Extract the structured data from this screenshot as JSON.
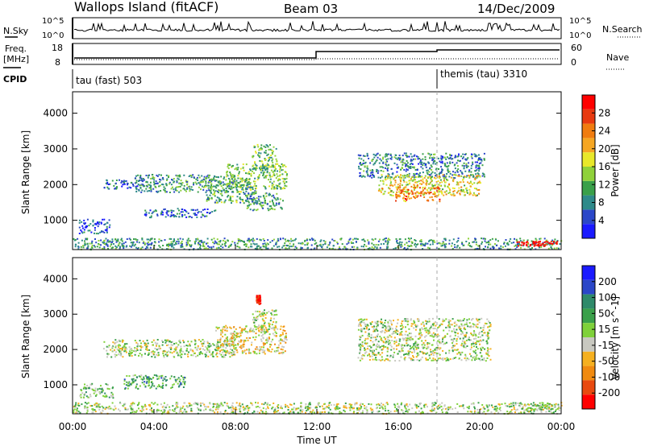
{
  "header": {
    "station": "Wallops Island (fitACF)",
    "beam": "Beam 03",
    "date": "14/Dec/2009"
  },
  "strip": {
    "nsky_label": "N.Sky",
    "nsky_ticks": [
      "10^5",
      "10^0"
    ],
    "nsearch_label": "N.Search",
    "nsearch_ticks": [
      "10^5",
      "10^0"
    ],
    "freq_label": "Freq.",
    "freq_unit": "[MHz]",
    "freq_ticks": [
      "18",
      "8"
    ],
    "nave_label": "Nave",
    "nave_ticks": [
      "60",
      "0"
    ],
    "cpid_label": "CPID",
    "cpid_segments": [
      "tau (fast) 503",
      "themis (tau) 3310"
    ]
  },
  "chart_data": [
    {
      "type": "heatmap",
      "title": "",
      "ylabel": "Slant Range [km]",
      "xlabel": "",
      "x_range_hours": [
        0,
        24
      ],
      "ylim": [
        180,
        4600
      ],
      "yticks": [
        "1000",
        "2000",
        "3000",
        "4000"
      ],
      "xticks": [
        "00:00",
        "04:00",
        "08:00",
        "12:00",
        "16:00",
        "20:00",
        "00:00"
      ],
      "colorbar": {
        "label": "Power [dB]",
        "ticks": [
          "4",
          "8",
          "12",
          "16",
          "20",
          "24",
          "28"
        ],
        "colors": [
          "#1a1aff",
          "#2b47c8",
          "#2f8a8a",
          "#3aa04a",
          "#8fd13a",
          "#e8e82a",
          "#f5a623",
          "#f07c10",
          "#e83a10",
          "#ff0000"
        ]
      },
      "regions": [
        {
          "t0": 0.3,
          "t1": 1.8,
          "r0": 650,
          "r1": 1050,
          "v": 0.15
        },
        {
          "t0": 1.5,
          "t1": 3.5,
          "r0": 1900,
          "r1": 2150,
          "v": 0.2
        },
        {
          "t0": 3.0,
          "t1": 8.0,
          "r0": 1800,
          "r1": 2300,
          "v": 0.3
        },
        {
          "t0": 3.5,
          "t1": 7.0,
          "r0": 1100,
          "r1": 1350,
          "v": 0.2
        },
        {
          "t0": 6.5,
          "t1": 9.0,
          "r0": 1500,
          "r1": 2200,
          "v": 0.35
        },
        {
          "t0": 7.5,
          "t1": 10.5,
          "r0": 1900,
          "r1": 2600,
          "v": 0.4
        },
        {
          "t0": 8.8,
          "t1": 10.0,
          "r0": 2400,
          "r1": 3150,
          "v": 0.4
        },
        {
          "t0": 8.5,
          "t1": 10.3,
          "r0": 1300,
          "r1": 1800,
          "v": 0.3
        },
        {
          "t0": 14.0,
          "t1": 20.2,
          "r0": 2200,
          "r1": 2900,
          "v": 0.25
        },
        {
          "t0": 15.0,
          "t1": 20.0,
          "r0": 1700,
          "r1": 2300,
          "v": 0.55
        },
        {
          "t0": 15.8,
          "t1": 18.0,
          "r0": 1550,
          "r1": 1950,
          "v": 0.75
        },
        {
          "t0": 0.0,
          "t1": 24.0,
          "r0": 200,
          "r1": 520,
          "v": 0.3
        },
        {
          "t0": 21.8,
          "t1": 23.8,
          "r0": 300,
          "r1": 430,
          "v": 0.95
        }
      ]
    },
    {
      "type": "heatmap",
      "title": "",
      "ylabel": "Slant Range [km]",
      "xlabel": "Time UT",
      "x_range_hours": [
        0,
        24
      ],
      "ylim": [
        180,
        4600
      ],
      "yticks": [
        "1000",
        "2000",
        "3000",
        "4000"
      ],
      "xticks": [
        "00:00",
        "04:00",
        "08:00",
        "12:00",
        "16:00",
        "20:00",
        "00:00"
      ],
      "colorbar": {
        "label": "Velocity [m s^-1]",
        "ticks": [
          "200",
          "100",
          "50",
          "15",
          "-15",
          "-50",
          "-100",
          "-200"
        ],
        "colors": [
          "#1a1aff",
          "#2b47c8",
          "#2f8a6a",
          "#3aa04a",
          "#7fd13a",
          "#c8c8c0",
          "#f5b020",
          "#f08a10",
          "#e84a10",
          "#ff0000"
        ]
      },
      "regions": [
        {
          "t0": 0.3,
          "t1": 2.0,
          "r0": 650,
          "r1": 1050,
          "v": 0.4
        },
        {
          "t0": 2.5,
          "t1": 5.5,
          "r0": 900,
          "r1": 1300,
          "v": 0.35
        },
        {
          "t0": 1.5,
          "t1": 8.0,
          "r0": 1800,
          "r1": 2300,
          "v": 0.5
        },
        {
          "t0": 7.0,
          "t1": 10.5,
          "r0": 1900,
          "r1": 2700,
          "v": 0.6
        },
        {
          "t0": 8.8,
          "t1": 10.0,
          "r0": 2500,
          "r1": 3150,
          "v": 0.5
        },
        {
          "t0": 14.0,
          "t1": 20.5,
          "r0": 1700,
          "r1": 2900,
          "v": 0.5
        },
        {
          "t0": 0.0,
          "t1": 24.0,
          "r0": 200,
          "r1": 520,
          "v": 0.5
        },
        {
          "t0": 22.0,
          "t1": 24.0,
          "r0": 300,
          "r1": 450,
          "v": 0.5
        },
        {
          "t0": 9.0,
          "t1": 9.2,
          "r0": 3300,
          "r1": 3550,
          "v": 0.98
        }
      ]
    }
  ]
}
